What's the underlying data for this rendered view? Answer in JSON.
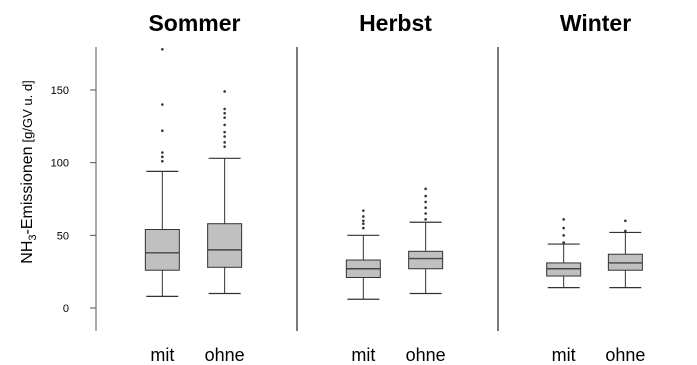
{
  "chart_data": {
    "type": "boxplot",
    "ylabel": {
      "main": "NH",
      "sub": "3",
      "rest": "-Emissionen",
      "unit": "[g/GV u. d]"
    },
    "ylim": [
      -5,
      178
    ],
    "yticks": [
      0,
      50,
      100,
      150
    ],
    "colors": {
      "box_fill": "#c0c0c0",
      "line": "#333333",
      "frame": "#555555"
    },
    "panels": [
      {
        "title": "Sommer",
        "boxes": [
          {
            "category": "mit",
            "whisker_low": 8,
            "q1": 26,
            "median": 38,
            "q3": 54,
            "whisker_high": 94,
            "outliers": [
              101,
              104,
              107,
              122,
              140,
              178
            ]
          },
          {
            "category": "ohne",
            "whisker_low": 10,
            "q1": 28,
            "median": 40,
            "q3": 58,
            "whisker_high": 103,
            "outliers": [
              111,
              114,
              118,
              121,
              126,
              131,
              134,
              137,
              149
            ]
          }
        ]
      },
      {
        "title": "Herbst",
        "boxes": [
          {
            "category": "mit",
            "whisker_low": 6,
            "q1": 21,
            "median": 27,
            "q3": 33,
            "whisker_high": 50,
            "outliers": [
              55,
              58,
              60,
              63,
              67
            ]
          },
          {
            "category": "ohne",
            "whisker_low": 10,
            "q1": 27,
            "median": 34,
            "q3": 39,
            "whisker_high": 59,
            "outliers": [
              61,
              65,
              69,
              73,
              77,
              82
            ]
          }
        ]
      },
      {
        "title": "Winter",
        "boxes": [
          {
            "category": "mit",
            "whisker_low": 14,
            "q1": 22,
            "median": 27,
            "q3": 31,
            "whisker_high": 44,
            "outliers": [
              45,
              50,
              55,
              61
            ]
          },
          {
            "category": "ohne",
            "whisker_low": 14,
            "q1": 26,
            "median": 31,
            "q3": 37,
            "whisker_high": 52,
            "outliers": [
              53,
              60
            ]
          }
        ]
      }
    ]
  }
}
